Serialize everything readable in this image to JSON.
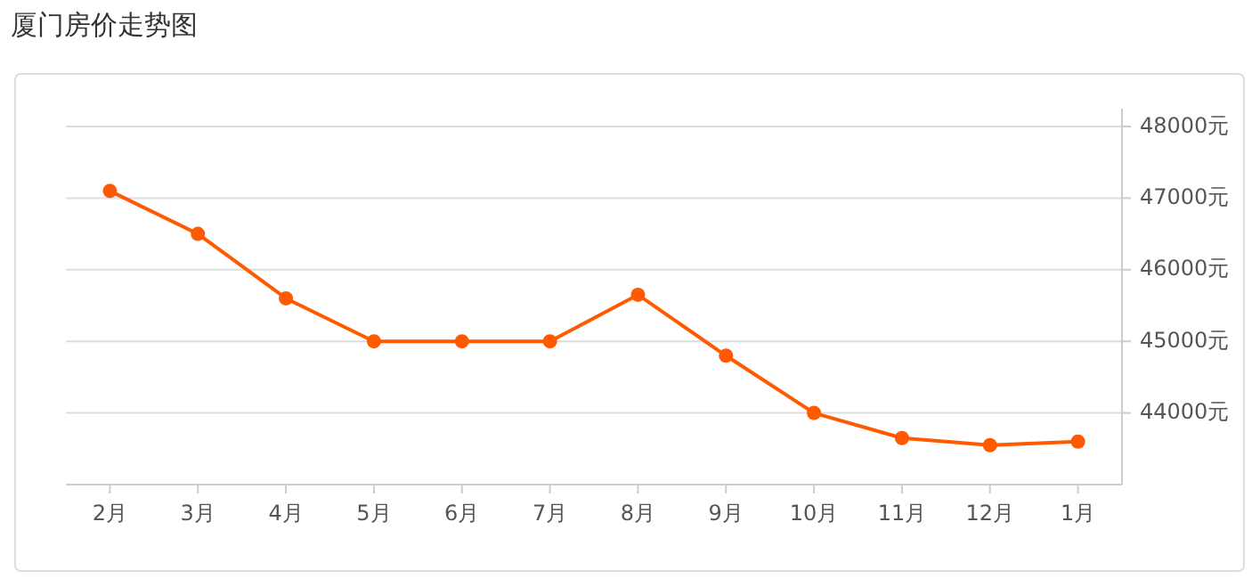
{
  "chart_data": {
    "type": "line",
    "title": "厦门房价走势图",
    "categories": [
      "2月",
      "3月",
      "4月",
      "5月",
      "6月",
      "7月",
      "8月",
      "9月",
      "10月",
      "11月",
      "12月",
      "1月"
    ],
    "series": [
      {
        "color": "#ff5a00",
        "values": [
          47100,
          46500,
          45600,
          45000,
          45000,
          45000,
          45650,
          44800,
          44000,
          43650,
          43550,
          43600
        ]
      }
    ],
    "ylim": [
      43000,
      48000
    ],
    "yticks": [
      {
        "value": 44000,
        "label": "44000元"
      },
      {
        "value": 45000,
        "label": "45000元"
      },
      {
        "value": 46000,
        "label": "46000元"
      },
      {
        "value": 47000,
        "label": "47000元"
      },
      {
        "value": 48000,
        "label": "48000元"
      }
    ],
    "grid": "y",
    "marker": "circle",
    "line_style": "solid"
  }
}
